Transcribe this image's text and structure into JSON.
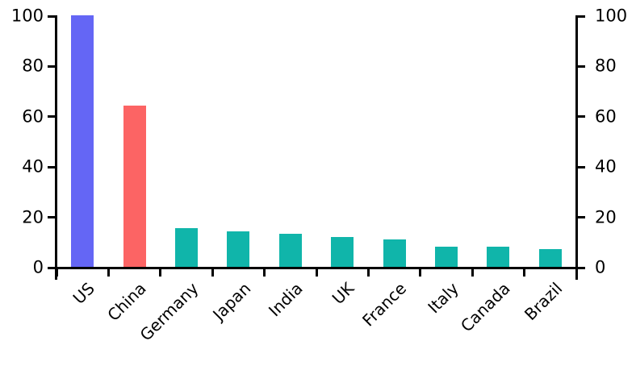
{
  "chart": {
    "background_color": "#ffffff",
    "axis_color": "#000000",
    "text_color": "#000000"
  },
  "chart_data": {
    "type": "bar",
    "categories": [
      "US",
      "China",
      "Germany",
      "Japan",
      "India",
      "UK",
      "France",
      "Italy",
      "Canada",
      "Brazil"
    ],
    "values": [
      100,
      64,
      15.5,
      14,
      13,
      12,
      11,
      8,
      8,
      7
    ],
    "bar_colors": [
      "#6466f5",
      "#fc6464",
      "#10b5aa",
      "#10b5aa",
      "#10b5aa",
      "#10b5aa",
      "#10b5aa",
      "#10b5aa",
      "#10b5aa",
      "#10b5aa"
    ],
    "title": "",
    "xlabel": "",
    "ylabel": "",
    "ylim": [
      0,
      100
    ],
    "yticks": [
      0,
      20,
      40,
      60,
      80,
      100
    ],
    "y_axis_sides": [
      "left",
      "right"
    ],
    "x_tick_placement": "category-boundaries",
    "x_label_rotation_deg": 45,
    "grid": false,
    "legend": "none"
  }
}
